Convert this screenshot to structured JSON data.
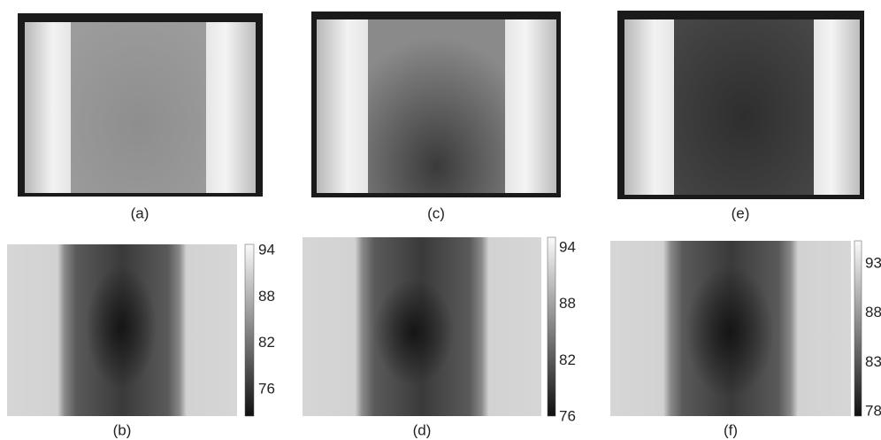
{
  "panels": [
    {
      "label": "(a)"
    },
    {
      "label": "(c)"
    },
    {
      "label": "(e)"
    },
    {
      "label": "(b)"
    },
    {
      "label": "(d)"
    },
    {
      "label": "(f)"
    }
  ],
  "colorbars": [
    {
      "ticks": [
        94,
        88,
        82,
        76
      ]
    },
    {
      "ticks": [
        94,
        88,
        82,
        76
      ]
    },
    {
      "ticks": [
        93,
        88,
        83,
        78
      ]
    }
  ]
}
